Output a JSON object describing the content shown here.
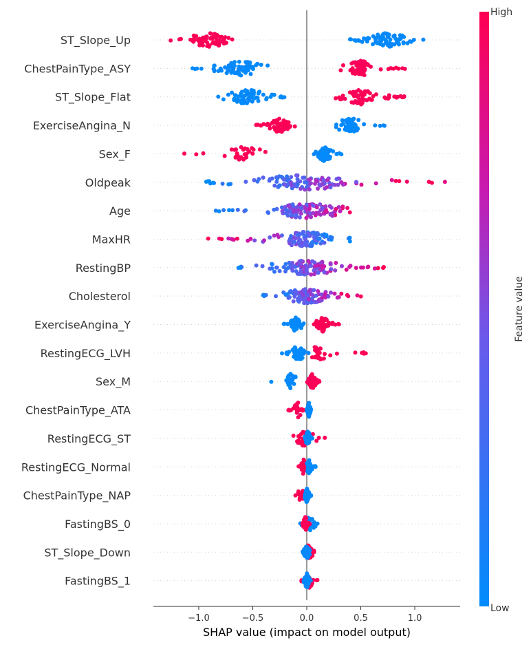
{
  "chart_data": {
    "type": "scatter",
    "subtype": "beeswarm",
    "xlabel": "SHAP value (impact on model output)",
    "xlim": [
      -1.42,
      1.42
    ],
    "xticks": [
      -1.0,
      -0.5,
      0.0,
      0.5,
      1.0
    ],
    "xtick_labels": [
      "−1.0",
      "−0.5",
      "0.0",
      "0.5",
      "1.0"
    ],
    "grid": false,
    "colorbar": {
      "label": "Feature value",
      "high_label": "High",
      "low_label": "Low",
      "high_color": "#ff0051",
      "low_color": "#008bfb",
      "placement": "right"
    },
    "features": [
      {
        "name": "ST_Slope_Up",
        "groups": [
          {
            "from": -1.3,
            "to": -0.6,
            "center": -0.9,
            "n": 70,
            "v0": 0.96,
            "v1": 1.0
          },
          {
            "from": 0.4,
            "to": 1.08,
            "center": 0.75,
            "n": 75,
            "v0": 0.0,
            "v1": 0.04
          }
        ]
      },
      {
        "name": "ChestPainType_ASY",
        "groups": [
          {
            "from": -1.1,
            "to": -0.25,
            "center": -0.6,
            "n": 70,
            "v0": 0.0,
            "v1": 0.04
          },
          {
            "from": 0.3,
            "to": 0.92,
            "center": 0.5,
            "n": 72,
            "v0": 0.96,
            "v1": 1.0
          }
        ]
      },
      {
        "name": "ST_Slope_Flat",
        "groups": [
          {
            "from": -0.92,
            "to": -0.2,
            "center": -0.55,
            "n": 68,
            "v0": 0.0,
            "v1": 0.04
          },
          {
            "from": 0.25,
            "to": 0.93,
            "center": 0.5,
            "n": 72,
            "v0": 0.96,
            "v1": 1.0
          }
        ]
      },
      {
        "name": "ExerciseAngina_N",
        "groups": [
          {
            "from": -0.47,
            "to": -0.1,
            "center": -0.25,
            "n": 60,
            "v0": 0.96,
            "v1": 1.0
          },
          {
            "from": 0.27,
            "to": 0.83,
            "center": 0.4,
            "n": 60,
            "v0": 0.0,
            "v1": 0.04
          }
        ]
      },
      {
        "name": "Sex_F",
        "groups": [
          {
            "from": -1.18,
            "to": -0.38,
            "center": -0.6,
            "n": 32,
            "v0": 0.96,
            "v1": 1.0
          },
          {
            "from": 0.05,
            "to": 0.33,
            "center": 0.16,
            "n": 60,
            "v0": 0.0,
            "v1": 0.04
          }
        ]
      },
      {
        "name": "Oldpeak",
        "groups": [
          {
            "from": -1.0,
            "to": 1.28,
            "center": 0.0,
            "n": 120,
            "v0": 0.0,
            "v1": 1.0,
            "trend": "increasing"
          }
        ]
      },
      {
        "name": "Age",
        "groups": [
          {
            "from": -0.85,
            "to": 0.68,
            "center": 0.0,
            "n": 115,
            "v0": 0.0,
            "v1": 1.0,
            "trend": "increasing"
          }
        ]
      },
      {
        "name": "MaxHR",
        "groups": [
          {
            "from": -0.95,
            "to": 0.45,
            "center": 0.0,
            "n": 115,
            "v0": 0.0,
            "v1": 1.0,
            "trend": "decreasing"
          }
        ]
      },
      {
        "name": "RestingBP",
        "groups": [
          {
            "from": -0.7,
            "to": 0.75,
            "center": 0.0,
            "n": 115,
            "v0": 0.0,
            "v1": 1.0,
            "trend": "increasing"
          }
        ]
      },
      {
        "name": "Cholesterol",
        "groups": [
          {
            "from": -0.42,
            "to": 0.53,
            "center": 0.0,
            "n": 110,
            "v0": 0.0,
            "v1": 1.0,
            "trend": "increasing"
          }
        ]
      },
      {
        "name": "ExerciseAngina_Y",
        "groups": [
          {
            "from": -0.22,
            "to": -0.02,
            "center": -0.1,
            "n": 50,
            "v0": 0.0,
            "v1": 0.04
          },
          {
            "from": 0.06,
            "to": 0.3,
            "center": 0.15,
            "n": 50,
            "v0": 0.96,
            "v1": 1.0
          }
        ]
      },
      {
        "name": "RestingECG_LVH",
        "groups": [
          {
            "from": -0.24,
            "to": 0.02,
            "center": -0.08,
            "n": 70,
            "v0": 0.0,
            "v1": 0.04
          },
          {
            "from": 0.02,
            "to": 0.55,
            "center": 0.1,
            "n": 38,
            "v0": 0.96,
            "v1": 1.0
          }
        ]
      },
      {
        "name": "Sex_M",
        "groups": [
          {
            "from": -0.33,
            "to": -0.08,
            "center": -0.15,
            "n": 25,
            "v0": 0.0,
            "v1": 0.04
          },
          {
            "from": 0.0,
            "to": 0.12,
            "center": 0.05,
            "n": 70,
            "v0": 0.96,
            "v1": 1.0
          }
        ]
      },
      {
        "name": "ChestPainType_ATA",
        "groups": [
          {
            "from": -0.17,
            "to": -0.02,
            "center": -0.08,
            "n": 22,
            "v0": 0.96,
            "v1": 1.0
          },
          {
            "from": 0.0,
            "to": 0.04,
            "center": 0.02,
            "n": 55,
            "v0": 0.0,
            "v1": 0.04
          }
        ]
      },
      {
        "name": "RestingECG_ST",
        "groups": [
          {
            "from": -0.24,
            "to": 0.17,
            "center": -0.03,
            "n": 35,
            "v0": 0.96,
            "v1": 1.0
          },
          {
            "from": -0.02,
            "to": 0.06,
            "center": 0.01,
            "n": 40,
            "v0": 0.0,
            "v1": 0.04
          }
        ]
      },
      {
        "name": "RestingECG_Normal",
        "groups": [
          {
            "from": -0.08,
            "to": 0.0,
            "center": -0.03,
            "n": 30,
            "v0": 0.96,
            "v1": 1.0
          },
          {
            "from": 0.0,
            "to": 0.09,
            "center": 0.02,
            "n": 40,
            "v0": 0.0,
            "v1": 0.04
          }
        ]
      },
      {
        "name": "ChestPainType_NAP",
        "groups": [
          {
            "from": -0.13,
            "to": -0.02,
            "center": -0.05,
            "n": 18,
            "v0": 0.96,
            "v1": 1.0
          },
          {
            "from": -0.02,
            "to": 0.05,
            "center": 0.0,
            "n": 55,
            "v0": 0.0,
            "v1": 0.04
          }
        ]
      },
      {
        "name": "FastingBS_0",
        "groups": [
          {
            "from": -0.06,
            "to": 0.13,
            "center": 0.02,
            "n": 28,
            "v0": 0.0,
            "v1": 0.04
          },
          {
            "from": -0.04,
            "to": 0.03,
            "center": -0.01,
            "n": 50,
            "v0": 0.96,
            "v1": 1.0
          }
        ]
      },
      {
        "name": "ST_Slope_Down",
        "groups": [
          {
            "from": -0.04,
            "to": 0.1,
            "center": 0.02,
            "n": 22,
            "v0": 0.96,
            "v1": 1.0
          },
          {
            "from": -0.04,
            "to": 0.04,
            "center": 0.0,
            "n": 50,
            "v0": 0.0,
            "v1": 0.04
          }
        ]
      },
      {
        "name": "FastingBS_1",
        "groups": [
          {
            "from": -0.05,
            "to": 0.1,
            "center": 0.02,
            "n": 20,
            "v0": 0.96,
            "v1": 1.0
          },
          {
            "from": -0.03,
            "to": 0.04,
            "center": 0.0,
            "n": 50,
            "v0": 0.0,
            "v1": 0.04
          }
        ]
      }
    ]
  }
}
